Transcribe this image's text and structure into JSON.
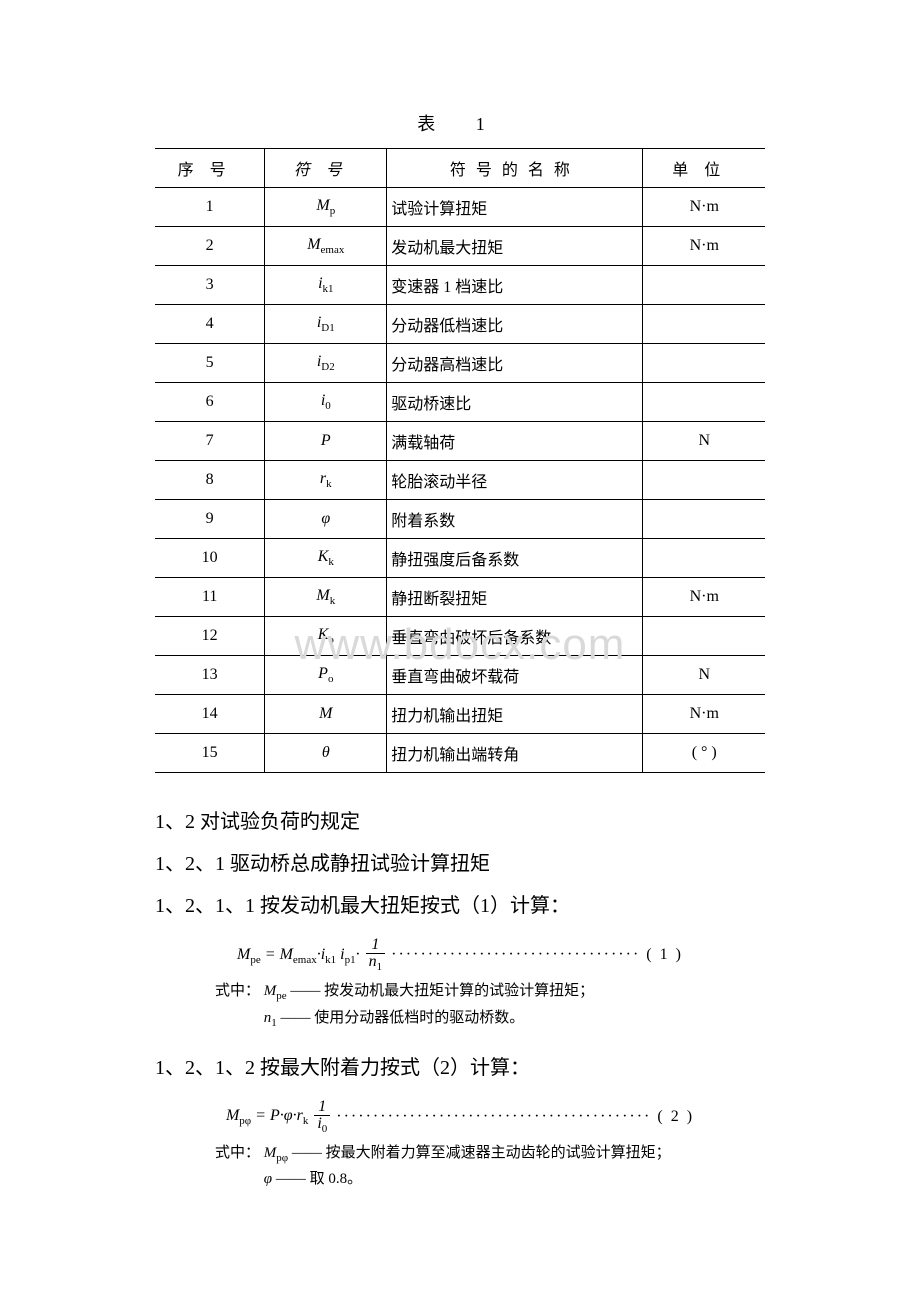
{
  "tableTitle": "表  1",
  "headers": {
    "seq": "序号",
    "sym": "符号",
    "name": "符号的名称",
    "unit": "单位"
  },
  "rows": [
    {
      "seq": "1",
      "sym": "M<sub class='sub'>p</sub>",
      "name": "试验计算扭矩",
      "unit": "N·m"
    },
    {
      "seq": "2",
      "sym": "M<sub class='sub'>emax</sub>",
      "name": "发动机最大扭矩",
      "unit": "N·m"
    },
    {
      "seq": "3",
      "sym": "i<sub class='sub'>k1</sub>",
      "name": "变速器 1 档速比",
      "unit": ""
    },
    {
      "seq": "4",
      "sym": "i<sub class='sub'>D1</sub>",
      "name": "分动器低档速比",
      "unit": ""
    },
    {
      "seq": "5",
      "sym": "i<sub class='sub'>D2</sub>",
      "name": "分动器高档速比",
      "unit": ""
    },
    {
      "seq": "6",
      "sym": "i<sub class='sub'>0</sub>",
      "name": "驱动桥速比",
      "unit": ""
    },
    {
      "seq": "7",
      "sym": "P",
      "name": "满载轴荷",
      "unit": "N"
    },
    {
      "seq": "8",
      "sym": "r<sub class='sub'>k</sub>",
      "name": "轮胎滚动半径",
      "unit": ""
    },
    {
      "seq": "9",
      "sym": "φ",
      "name": "附着系数",
      "unit": ""
    },
    {
      "seq": "10",
      "sym": "K<sub class='sub'>k</sub>",
      "name": "静扭强度后备系数",
      "unit": ""
    },
    {
      "seq": "11",
      "sym": "M<sub class='sub'>k</sub>",
      "name": "静扭断裂扭矩",
      "unit": "N·m"
    },
    {
      "seq": "12",
      "sym": "K<sub class='sub'>o</sub>",
      "name": "垂直弯曲破坏后备系数",
      "unit": ""
    },
    {
      "seq": "13",
      "sym": "P<sub class='sub'>o</sub>",
      "name": "垂直弯曲破坏载荷",
      "unit": "N"
    },
    {
      "seq": "14",
      "sym": "M",
      "name": "扭力机输出扭矩",
      "unit": "N·m"
    },
    {
      "seq": "15",
      "sym": "θ",
      "name": "扭力机输出端转角",
      "unit": "( ° )"
    }
  ],
  "watermark": "www.bdocx.com",
  "paras": {
    "p1": "1、2 对试验负荷旳规定",
    "p2": "1、2、1 驱动桥总成静扭试验计算扭矩",
    "p3": "1、2、1、1 按发动机最大扭矩按式（1）计算：",
    "p4": "1、2、1、2 按最大附着力按式（2）计算："
  },
  "formula1": {
    "lhs": "M<sub class='sub'>pe</sub> = M<sub class='sub'>emax</sub>·i<sub class='sub'>k1</sub> i<sub class='sub'>p1</sub>·",
    "fracNum": "1",
    "fracDen": "n<sub class='sub'>1</sub>",
    "tail": " ·································· ( 1 )"
  },
  "formula1Note": {
    "prefix": "式中：",
    "line1sym": "M<sub class='sub'>pe</sub>",
    "line1": " —— 按发动机最大扭矩计算的试验计算扭矩；",
    "line2sym": "n<sub class='sub'>1</sub>",
    "line2": " —— 使用分动器低档时的驱动桥数。"
  },
  "formula2": {
    "lhs": "M<sub class='sub'>pφ</sub> = P·φ·r<sub class='sub'>k</sub>",
    "fracNum": "1",
    "fracDen": "i<sub class='sub'>0</sub>",
    "tail": "··········································· ( 2 )"
  },
  "formula2Note": {
    "prefix": "式中：",
    "line1sym": "M<sub class='sub'>pφ</sub>",
    "line1": " —— 按最大附着力算至减速器主动齿轮的试验计算扭矩；",
    "line2sym": "φ",
    "line2": " —— 取 0.8。"
  }
}
